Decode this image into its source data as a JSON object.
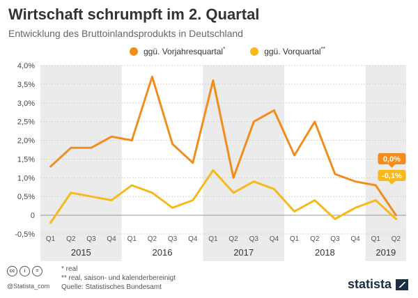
{
  "header": {
    "title": "Wirtschaft schrumpft im 2. Quartal",
    "subtitle": "Entwicklung des Bruttoinlandsprodukts in Deutschland"
  },
  "legend": [
    {
      "label": "ggü. Vorjahresquartal",
      "sup": "*",
      "color": "#f28c1b"
    },
    {
      "label": "ggü. Vorquartal",
      "sup": "**",
      "color": "#f6b81b"
    }
  ],
  "footer": {
    "note1": "*   real",
    "note2": "** real, saison- und kalenderbereinigt",
    "source": "Quelle: Statistisches Bundesamt",
    "handle": "@Statista_com",
    "brand": "statista"
  },
  "chart_data": {
    "type": "line",
    "categories": [
      "Q1",
      "Q2",
      "Q3",
      "Q4",
      "Q1",
      "Q2",
      "Q3",
      "Q4",
      "Q1",
      "Q2",
      "Q3",
      "Q4",
      "Q1",
      "Q2",
      "Q3",
      "Q4",
      "Q1",
      "Q2"
    ],
    "years": [
      {
        "label": "2015",
        "start": 0,
        "end": 3,
        "shaded": true
      },
      {
        "label": "2016",
        "start": 4,
        "end": 7,
        "shaded": false
      },
      {
        "label": "2017",
        "start": 8,
        "end": 11,
        "shaded": true
      },
      {
        "label": "2018",
        "start": 12,
        "end": 15,
        "shaded": false
      },
      {
        "label": "2019",
        "start": 16,
        "end": 17,
        "shaded": true
      }
    ],
    "series": [
      {
        "name": "ggü. Vorjahresquartal",
        "color": "#f28c1b",
        "values": [
          1.3,
          1.8,
          1.8,
          2.1,
          2.0,
          3.7,
          1.9,
          1.4,
          3.6,
          1.0,
          2.5,
          2.8,
          1.6,
          2.5,
          1.1,
          0.9,
          0.8,
          0.0
        ],
        "end_label": "0,0%"
      },
      {
        "name": "ggü. Vorquartal",
        "color": "#f6b81b",
        "values": [
          -0.2,
          0.6,
          0.5,
          0.4,
          0.8,
          0.6,
          0.2,
          0.4,
          1.2,
          0.6,
          0.9,
          0.7,
          0.1,
          0.4,
          -0.1,
          0.2,
          0.4,
          -0.1
        ],
        "end_label": "-0,1%"
      }
    ],
    "ylim": [
      -0.5,
      4.0
    ],
    "yticks": [
      "-0,5%",
      "0",
      "0,5%",
      "1,0%",
      "1,5%",
      "2,0%",
      "2,5%",
      "3,0%",
      "3,5%",
      "4,0%"
    ],
    "ytick_values": [
      -0.5,
      0,
      0.5,
      1.0,
      1.5,
      2.0,
      2.5,
      3.0,
      3.5,
      4.0
    ],
    "grid": true
  }
}
